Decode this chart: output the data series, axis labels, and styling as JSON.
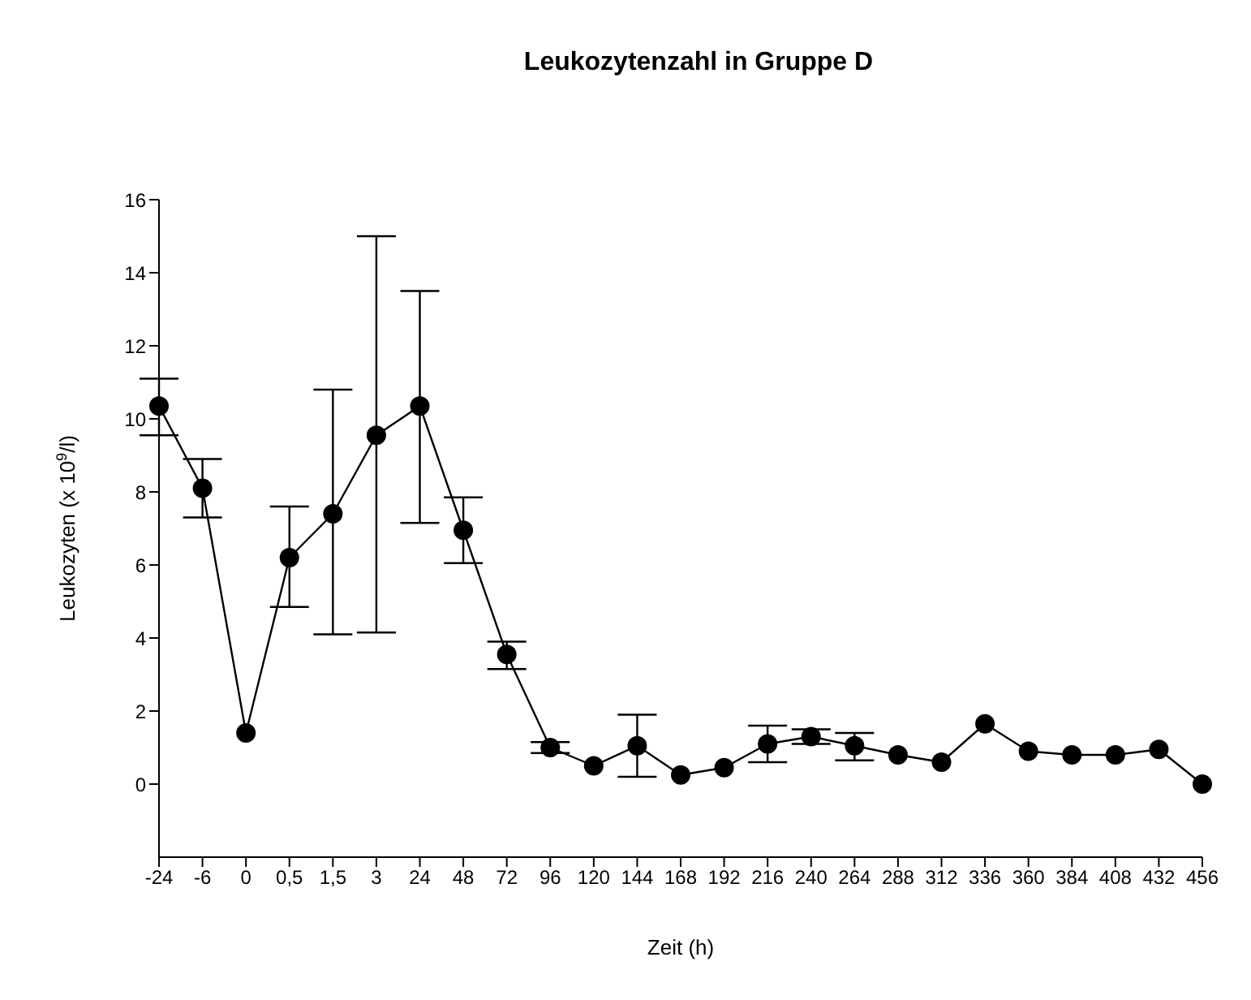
{
  "chart_data": {
    "type": "line",
    "title": "Leukozytenzahl in Gruppe D",
    "xlabel": "Zeit (h)",
    "ylabel": "Leukozyten (x 10$^{9}$/l)",
    "categories": [
      "-24",
      "-6",
      "0",
      "0,5",
      "1,5",
      "3",
      "24",
      "48",
      "72",
      "96",
      "120",
      "144",
      "168",
      "192",
      "216",
      "240",
      "264",
      "288",
      "312",
      "336",
      "360",
      "384",
      "408",
      "432",
      "456"
    ],
    "series": [
      {
        "color": "#000000",
        "values": [
          10.35,
          8.1,
          1.4,
          6.2,
          7.4,
          9.55,
          10.35,
          6.95,
          3.55,
          1.0,
          0.5,
          1.05,
          0.25,
          0.45,
          1.1,
          1.3,
          1.05,
          0.8,
          0.6,
          1.65,
          0.9,
          0.8,
          0.8,
          0.95,
          0.0
        ],
        "errors": [
          [
            9.55,
            11.1
          ],
          [
            7.3,
            8.9
          ],
          null,
          [
            4.85,
            7.6
          ],
          [
            4.1,
            10.8
          ],
          [
            4.15,
            15.0
          ],
          [
            7.15,
            13.5
          ],
          [
            6.05,
            7.85
          ],
          [
            3.15,
            3.9
          ],
          [
            0.85,
            1.15
          ],
          null,
          [
            0.2,
            1.9
          ],
          null,
          null,
          [
            0.6,
            1.6
          ],
          [
            1.1,
            1.5
          ],
          [
            0.65,
            1.4
          ],
          null,
          null,
          null,
          null,
          null,
          null,
          null,
          null
        ]
      }
    ],
    "ylim": [
      -2,
      16
    ],
    "yticks": [
      0,
      2,
      4,
      6,
      8,
      10,
      12,
      14,
      16
    ],
    "grid": false,
    "legend": false,
    "marker": "circle",
    "line_style": "solid"
  }
}
